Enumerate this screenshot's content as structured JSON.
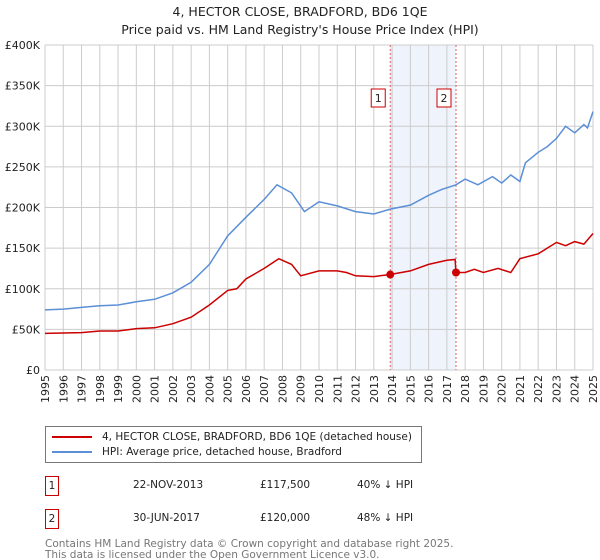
{
  "chart_data": {
    "type": "line",
    "title": "4, HECTOR CLOSE, BRADFORD, BD6 1QE",
    "subtitle": "Price paid vs. HM Land Registry's House Price Index (HPI)",
    "xlim": [
      1995,
      2025
    ],
    "ylim": [
      0,
      400000
    ],
    "grid": true,
    "x_ticks": [
      "1995",
      "1996",
      "1997",
      "1998",
      "1999",
      "2000",
      "2001",
      "2002",
      "2003",
      "2004",
      "2005",
      "2006",
      "2007",
      "2008",
      "2009",
      "2010",
      "2011",
      "2012",
      "2013",
      "2014",
      "2015",
      "2016",
      "2017",
      "2018",
      "2019",
      "2020",
      "2021",
      "2022",
      "2023",
      "2024",
      "2025"
    ],
    "y_ticks": [
      {
        "value": 0,
        "label": "£0"
      },
      {
        "value": 50000,
        "label": "£50K"
      },
      {
        "value": 100000,
        "label": "£100K"
      },
      {
        "value": 150000,
        "label": "£150K"
      },
      {
        "value": 200000,
        "label": "£200K"
      },
      {
        "value": 250000,
        "label": "£250K"
      },
      {
        "value": 300000,
        "label": "£300K"
      },
      {
        "value": 350000,
        "label": "£350K"
      },
      {
        "value": 400000,
        "label": "£400K"
      }
    ],
    "shaded_range": [
      2013.9,
      2017.5
    ],
    "series": [
      {
        "name": "4, HECTOR CLOSE, BRADFORD, BD6 1QE (detached house)",
        "color": "#cc0000",
        "x": [
          1995,
          1996,
          1997,
          1998,
          1999,
          2000,
          2001,
          2002,
          2003,
          2004,
          2005,
          2005.5,
          2006,
          2007,
          2007.8,
          2008.5,
          2009,
          2010,
          2011,
          2011.5,
          2012,
          2013,
          2013.9,
          2015,
          2016,
          2017,
          2017.45,
          2017.5,
          2018,
          2018.5,
          2019,
          2019.8,
          2020.5,
          2021,
          2022,
          2022.5,
          2023,
          2023.5,
          2024,
          2024.5,
          2025
        ],
        "y": [
          45000,
          45500,
          46000,
          48000,
          48000,
          51000,
          52000,
          57000,
          65000,
          80000,
          98000,
          100000,
          112000,
          125000,
          137000,
          130000,
          116000,
          122000,
          122000,
          120000,
          116000,
          115000,
          117500,
          122000,
          130000,
          135000,
          136000,
          120000,
          120000,
          124000,
          120000,
          125000,
          120000,
          137000,
          143000,
          150000,
          157000,
          153000,
          158000,
          155000,
          168000
        ]
      },
      {
        "name": "HPI: Average price, detached house, Bradford",
        "color": "#5b8fd6",
        "x": [
          1995,
          1996,
          1997,
          1998,
          1999,
          2000,
          2001,
          2002,
          2003,
          2004,
          2005,
          2006,
          2007,
          2007.7,
          2008.5,
          2009.2,
          2010,
          2011,
          2012,
          2013,
          2013.9,
          2015,
          2016,
          2016.7,
          2017.5,
          2018,
          2018.7,
          2019.5,
          2020,
          2020.5,
          2021,
          2021.3,
          2022,
          2022.5,
          2023,
          2023.5,
          2024,
          2024.5,
          2024.7,
          2025
        ],
        "y": [
          74000,
          75000,
          77000,
          79000,
          80000,
          84000,
          87000,
          95000,
          108000,
          130000,
          165000,
          188000,
          210000,
          228000,
          218000,
          195000,
          207000,
          202000,
          195000,
          192000,
          198000,
          203000,
          215000,
          222000,
          228000,
          235000,
          228000,
          238000,
          230000,
          240000,
          232000,
          255000,
          268000,
          275000,
          285000,
          300000,
          292000,
          302000,
          298000,
          318000
        ]
      }
    ],
    "annotations": [
      {
        "label": "1",
        "x": 2013.9,
        "y": 117500
      },
      {
        "label": "2",
        "x": 2017.5,
        "y": 120000
      }
    ]
  },
  "legend": {
    "items": [
      {
        "label": "4, HECTOR CLOSE, BRADFORD, BD6 1QE (detached house)",
        "color": "#cc0000"
      },
      {
        "label": "HPI: Average price, detached house, Bradford",
        "color": "#5b8fd6"
      }
    ]
  },
  "sales": [
    {
      "num": "1",
      "date": "22-NOV-2013",
      "price": "£117,500",
      "hpi": "40% ↓ HPI"
    },
    {
      "num": "2",
      "date": "30-JUN-2017",
      "price": "£120,000",
      "hpi": "48% ↓ HPI"
    }
  ],
  "footer": {
    "line1": "Contains HM Land Registry data © Crown copyright and database right 2025.",
    "line2": "This data is licensed under the Open Government Licence v3.0."
  }
}
